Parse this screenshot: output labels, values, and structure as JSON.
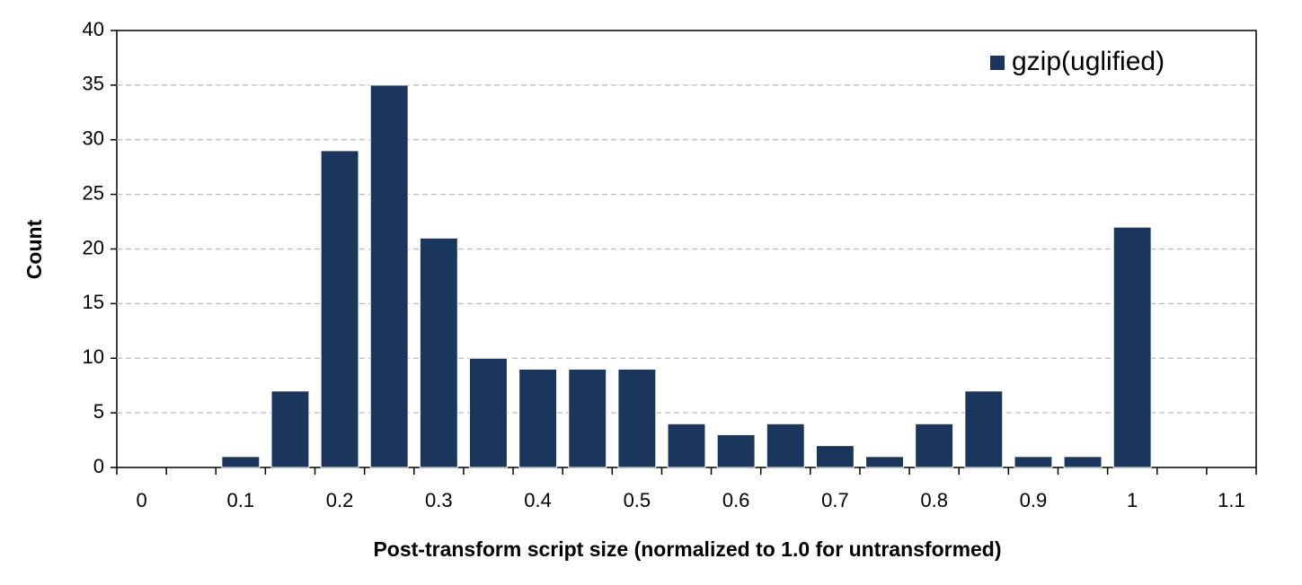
{
  "chart_data": {
    "type": "bar",
    "x_label": "Post-transform script size (normalized to 1.0 for untransformed)",
    "y_label": "Count",
    "categories": [
      "0",
      null,
      "0.1",
      null,
      "0.2",
      null,
      "0.3",
      null,
      "0.4",
      null,
      "0.5",
      null,
      "0.6",
      null,
      "0.7",
      null,
      "0.8",
      null,
      "0.9",
      null,
      "1",
      null,
      "1.1"
    ],
    "series": [
      {
        "name": "gzip(uglified)",
        "color": "#1b365d",
        "values": [
          0,
          0,
          1,
          7,
          29,
          35,
          21,
          10,
          9,
          9,
          9,
          4,
          3,
          4,
          2,
          1,
          4,
          7,
          1,
          1,
          22,
          0,
          0
        ]
      }
    ],
    "ylim": [
      0,
      40
    ],
    "yticks": [
      0,
      5,
      10,
      15,
      20,
      25,
      30,
      35,
      40
    ],
    "grid": true,
    "legend": "upper right"
  }
}
